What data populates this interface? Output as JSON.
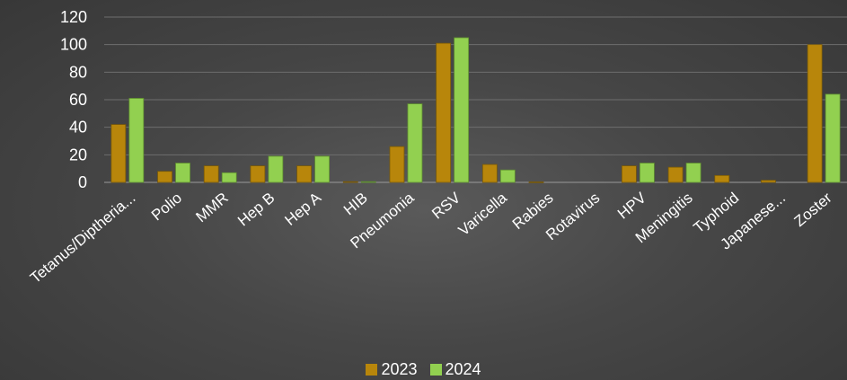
{
  "chart_data": {
    "type": "bar",
    "categories": [
      "Tetanus/Diptheria...",
      "Polio",
      "MMR",
      "Hep B",
      "Hep A",
      "HIB",
      "Pneumonia",
      "RSV",
      "Varicella",
      "Rabies",
      "Rotavirus",
      "HPV",
      "Meningitis",
      "Typhoid",
      "Japanese...",
      "Zoster"
    ],
    "series": [
      {
        "name": "2023",
        "values": [
          42,
          8,
          12,
          12,
          12,
          0.5,
          26,
          101,
          13,
          0.3,
          0,
          12,
          11,
          5,
          1.5,
          100
        ],
        "color": "#b8860b"
      },
      {
        "name": "2024",
        "values": [
          61,
          14,
          7,
          19,
          19,
          0.5,
          57,
          105,
          9,
          0,
          0,
          14,
          14,
          0,
          0,
          64
        ],
        "color": "#92d050"
      }
    ],
    "yticks": [
      0,
      20,
      40,
      60,
      80,
      100,
      120
    ],
    "ylim": [
      0,
      120
    ],
    "grid": true,
    "legend_position": "bottom"
  }
}
